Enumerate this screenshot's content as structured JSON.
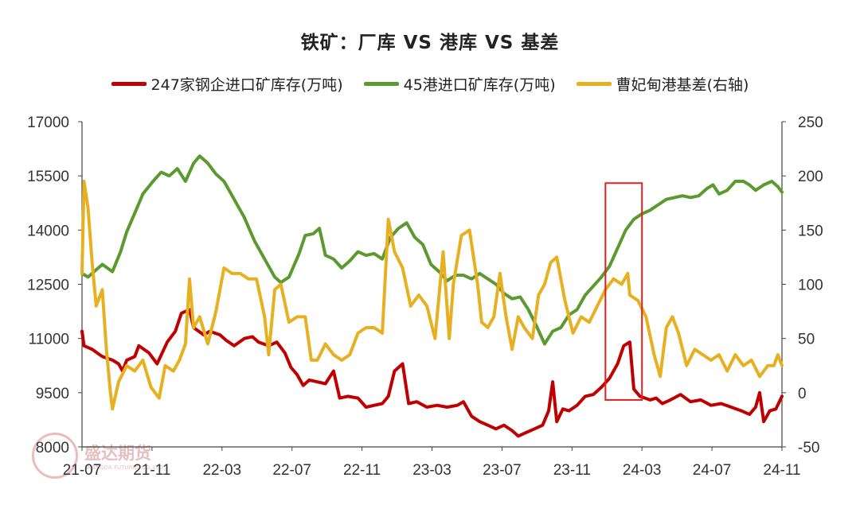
{
  "chart_data": {
    "type": "line",
    "title": "铁矿：厂库 VS 港库 VS 基差",
    "x_tick_labels": [
      "21-07",
      "21-11",
      "22-03",
      "22-07",
      "22-11",
      "23-03",
      "23-07",
      "23-11",
      "24-03",
      "24-07",
      "24-11"
    ],
    "y_left": {
      "ylim": [
        8000,
        17000
      ],
      "ticks": [
        8000,
        9500,
        11000,
        12500,
        14000,
        15500,
        17000
      ]
    },
    "y_right": {
      "ylim": [
        -50,
        250
      ],
      "ticks": [
        -50,
        0,
        50,
        100,
        150,
        200,
        250
      ]
    },
    "x_range": [
      2021.5,
      2024.95
    ],
    "series": [
      {
        "name": "247家钢企进口矿库存(万吨)",
        "axis": "left",
        "color": "#c00000",
        "points": [
          [
            2021.5,
            11200
          ],
          [
            2021.51,
            10800
          ],
          [
            2021.55,
            10700
          ],
          [
            2021.6,
            10500
          ],
          [
            2021.65,
            10400
          ],
          [
            2021.68,
            10300
          ],
          [
            2021.7,
            10100
          ],
          [
            2021.72,
            10400
          ],
          [
            2021.76,
            10500
          ],
          [
            2021.78,
            10800
          ],
          [
            2021.83,
            10600
          ],
          [
            2021.87,
            10300
          ],
          [
            2021.92,
            10900
          ],
          [
            2021.96,
            11200
          ],
          [
            2021.99,
            11700
          ],
          [
            2022.03,
            11800
          ],
          [
            2022.05,
            11300
          ],
          [
            2022.1,
            11100
          ],
          [
            2022.13,
            11200
          ],
          [
            2022.18,
            11100
          ],
          [
            2022.21,
            10950
          ],
          [
            2022.25,
            10800
          ],
          [
            2022.3,
            11000
          ],
          [
            2022.34,
            11050
          ],
          [
            2022.37,
            10900
          ],
          [
            2022.42,
            10800
          ],
          [
            2022.46,
            10900
          ],
          [
            2022.5,
            10600
          ],
          [
            2022.53,
            10200
          ],
          [
            2022.56,
            10000
          ],
          [
            2022.59,
            9700
          ],
          [
            2022.62,
            9850
          ],
          [
            2022.66,
            9800
          ],
          [
            2022.7,
            9750
          ],
          [
            2022.74,
            10100
          ],
          [
            2022.77,
            9350
          ],
          [
            2022.81,
            9400
          ],
          [
            2022.86,
            9350
          ],
          [
            2022.9,
            9100
          ],
          [
            2022.94,
            9150
          ],
          [
            2022.98,
            9200
          ],
          [
            2023.01,
            9400
          ],
          [
            2023.04,
            10100
          ],
          [
            2023.08,
            10300
          ],
          [
            2023.11,
            9200
          ],
          [
            2023.15,
            9250
          ],
          [
            2023.2,
            9100
          ],
          [
            2023.25,
            9150
          ],
          [
            2023.3,
            9100
          ],
          [
            2023.35,
            9150
          ],
          [
            2023.38,
            9250
          ],
          [
            2023.42,
            8850
          ],
          [
            2023.46,
            8700
          ],
          [
            2023.5,
            8600
          ],
          [
            2023.54,
            8500
          ],
          [
            2023.58,
            8600
          ],
          [
            2023.62,
            8450
          ],
          [
            2023.65,
            8300
          ],
          [
            2023.69,
            8400
          ],
          [
            2023.73,
            8500
          ],
          [
            2023.77,
            8600
          ],
          [
            2023.8,
            9000
          ],
          [
            2023.82,
            9800
          ],
          [
            2023.84,
            8700
          ],
          [
            2023.87,
            9050
          ],
          [
            2023.9,
            9000
          ],
          [
            2023.94,
            9150
          ],
          [
            2023.98,
            9400
          ],
          [
            2024.02,
            9450
          ],
          [
            2024.06,
            9650
          ],
          [
            2024.1,
            9900
          ],
          [
            2024.14,
            10300
          ],
          [
            2024.17,
            10800
          ],
          [
            2024.2,
            10900
          ],
          [
            2024.22,
            9600
          ],
          [
            2024.25,
            9400
          ],
          [
            2024.3,
            9300
          ],
          [
            2024.33,
            9350
          ],
          [
            2024.36,
            9200
          ],
          [
            2024.4,
            9300
          ],
          [
            2024.45,
            9450
          ],
          [
            2024.5,
            9250
          ],
          [
            2024.55,
            9300
          ],
          [
            2024.6,
            9150
          ],
          [
            2024.65,
            9200
          ],
          [
            2024.7,
            9100
          ],
          [
            2024.75,
            9000
          ],
          [
            2024.79,
            8900
          ],
          [
            2024.82,
            9100
          ],
          [
            2024.84,
            9500
          ],
          [
            2024.86,
            8700
          ],
          [
            2024.89,
            9000
          ],
          [
            2024.92,
            9050
          ],
          [
            2024.95,
            9400
          ]
        ]
      },
      {
        "name": "45港进口矿库存(万吨)",
        "axis": "left",
        "color": "#5b9a2f",
        "points": [
          [
            2021.5,
            12800
          ],
          [
            2021.53,
            12700
          ],
          [
            2021.57,
            12900
          ],
          [
            2021.6,
            13050
          ],
          [
            2021.65,
            12850
          ],
          [
            2021.69,
            13400
          ],
          [
            2021.72,
            13950
          ],
          [
            2021.77,
            14600
          ],
          [
            2021.8,
            15000
          ],
          [
            2021.85,
            15350
          ],
          [
            2021.89,
            15600
          ],
          [
            2021.93,
            15500
          ],
          [
            2021.97,
            15700
          ],
          [
            2022.01,
            15350
          ],
          [
            2022.05,
            15850
          ],
          [
            2022.08,
            16050
          ],
          [
            2022.12,
            15850
          ],
          [
            2022.16,
            15550
          ],
          [
            2022.2,
            15350
          ],
          [
            2022.25,
            14850
          ],
          [
            2022.3,
            14350
          ],
          [
            2022.35,
            13700
          ],
          [
            2022.4,
            13200
          ],
          [
            2022.45,
            12700
          ],
          [
            2022.48,
            12550
          ],
          [
            2022.52,
            12700
          ],
          [
            2022.57,
            13350
          ],
          [
            2022.6,
            13850
          ],
          [
            2022.64,
            13900
          ],
          [
            2022.67,
            14050
          ],
          [
            2022.7,
            13300
          ],
          [
            2022.74,
            13200
          ],
          [
            2022.78,
            12950
          ],
          [
            2022.82,
            13150
          ],
          [
            2022.86,
            13400
          ],
          [
            2022.9,
            13300
          ],
          [
            2022.94,
            13350
          ],
          [
            2022.98,
            13200
          ],
          [
            2023.02,
            13800
          ],
          [
            2023.06,
            14050
          ],
          [
            2023.1,
            14200
          ],
          [
            2023.14,
            13800
          ],
          [
            2023.18,
            13600
          ],
          [
            2023.22,
            13050
          ],
          [
            2023.26,
            12850
          ],
          [
            2023.3,
            12600
          ],
          [
            2023.34,
            12750
          ],
          [
            2023.38,
            12750
          ],
          [
            2023.42,
            12650
          ],
          [
            2023.46,
            12800
          ],
          [
            2023.5,
            12650
          ],
          [
            2023.54,
            12500
          ],
          [
            2023.58,
            12250
          ],
          [
            2023.62,
            12100
          ],
          [
            2023.66,
            12150
          ],
          [
            2023.7,
            11800
          ],
          [
            2023.74,
            11350
          ],
          [
            2023.78,
            10850
          ],
          [
            2023.82,
            11200
          ],
          [
            2023.86,
            11300
          ],
          [
            2023.9,
            11650
          ],
          [
            2023.94,
            11800
          ],
          [
            2023.98,
            12200
          ],
          [
            2024.02,
            12450
          ],
          [
            2024.06,
            12700
          ],
          [
            2024.1,
            13000
          ],
          [
            2024.14,
            13500
          ],
          [
            2024.18,
            14000
          ],
          [
            2024.22,
            14300
          ],
          [
            2024.26,
            14450
          ],
          [
            2024.3,
            14550
          ],
          [
            2024.34,
            14700
          ],
          [
            2024.38,
            14850
          ],
          [
            2024.42,
            14900
          ],
          [
            2024.46,
            14950
          ],
          [
            2024.5,
            14900
          ],
          [
            2024.54,
            14950
          ],
          [
            2024.58,
            15150
          ],
          [
            2024.61,
            15250
          ],
          [
            2024.64,
            15000
          ],
          [
            2024.68,
            15100
          ],
          [
            2024.72,
            15350
          ],
          [
            2024.76,
            15350
          ],
          [
            2024.79,
            15250
          ],
          [
            2024.82,
            15100
          ],
          [
            2024.86,
            15250
          ],
          [
            2024.9,
            15350
          ],
          [
            2024.93,
            15200
          ],
          [
            2024.95,
            15050
          ]
        ]
      },
      {
        "name": "曹妃甸港基差(右轴)",
        "axis": "right",
        "color": "#e6b020",
        "points": [
          [
            2021.5,
            110
          ],
          [
            2021.51,
            195
          ],
          [
            2021.53,
            170
          ],
          [
            2021.55,
            120
          ],
          [
            2021.57,
            80
          ],
          [
            2021.6,
            95
          ],
          [
            2021.62,
            40
          ],
          [
            2021.64,
            0
          ],
          [
            2021.65,
            -15
          ],
          [
            2021.68,
            10
          ],
          [
            2021.72,
            25
          ],
          [
            2021.76,
            20
          ],
          [
            2021.8,
            30
          ],
          [
            2021.84,
            5
          ],
          [
            2021.88,
            -5
          ],
          [
            2021.91,
            25
          ],
          [
            2021.95,
            20
          ],
          [
            2021.98,
            30
          ],
          [
            2022.01,
            45
          ],
          [
            2022.03,
            105
          ],
          [
            2022.05,
            60
          ],
          [
            2022.08,
            70
          ],
          [
            2022.12,
            45
          ],
          [
            2022.16,
            75
          ],
          [
            2022.2,
            115
          ],
          [
            2022.24,
            110
          ],
          [
            2022.28,
            110
          ],
          [
            2022.32,
            105
          ],
          [
            2022.36,
            105
          ],
          [
            2022.4,
            70
          ],
          [
            2022.42,
            35
          ],
          [
            2022.45,
            95
          ],
          [
            2022.48,
            100
          ],
          [
            2022.52,
            65
          ],
          [
            2022.56,
            70
          ],
          [
            2022.6,
            70
          ],
          [
            2022.63,
            30
          ],
          [
            2022.66,
            30
          ],
          [
            2022.7,
            45
          ],
          [
            2022.74,
            35
          ],
          [
            2022.78,
            30
          ],
          [
            2022.82,
            35
          ],
          [
            2022.86,
            55
          ],
          [
            2022.9,
            60
          ],
          [
            2022.94,
            60
          ],
          [
            2022.98,
            55
          ],
          [
            2023.01,
            160
          ],
          [
            2023.04,
            130
          ],
          [
            2023.08,
            115
          ],
          [
            2023.12,
            80
          ],
          [
            2023.16,
            90
          ],
          [
            2023.2,
            80
          ],
          [
            2023.24,
            50
          ],
          [
            2023.28,
            130
          ],
          [
            2023.31,
            50
          ],
          [
            2023.33,
            100
          ],
          [
            2023.37,
            145
          ],
          [
            2023.41,
            150
          ],
          [
            2023.45,
            100
          ],
          [
            2023.47,
            65
          ],
          [
            2023.5,
            60
          ],
          [
            2023.53,
            70
          ],
          [
            2023.56,
            110
          ],
          [
            2023.59,
            70
          ],
          [
            2023.62,
            40
          ],
          [
            2023.65,
            70
          ],
          [
            2023.68,
            60
          ],
          [
            2023.72,
            50
          ],
          [
            2023.75,
            90
          ],
          [
            2023.78,
            100
          ],
          [
            2023.81,
            120
          ],
          [
            2023.84,
            125
          ],
          [
            2023.88,
            85
          ],
          [
            2023.92,
            55
          ],
          [
            2023.96,
            70
          ],
          [
            2024.0,
            65
          ],
          [
            2024.04,
            80
          ],
          [
            2024.08,
            95
          ],
          [
            2024.12,
            105
          ],
          [
            2024.16,
            100
          ],
          [
            2024.19,
            110
          ],
          [
            2024.2,
            90
          ],
          [
            2024.24,
            85
          ],
          [
            2024.28,
            70
          ],
          [
            2024.32,
            35
          ],
          [
            2024.35,
            15
          ],
          [
            2024.38,
            60
          ],
          [
            2024.41,
            70
          ],
          [
            2024.44,
            55
          ],
          [
            2024.48,
            25
          ],
          [
            2024.52,
            40
          ],
          [
            2024.56,
            35
          ],
          [
            2024.6,
            30
          ],
          [
            2024.64,
            35
          ],
          [
            2024.68,
            20
          ],
          [
            2024.72,
            35
          ],
          [
            2024.76,
            25
          ],
          [
            2024.8,
            30
          ],
          [
            2024.84,
            15
          ],
          [
            2024.88,
            25
          ],
          [
            2024.91,
            25
          ],
          [
            2024.93,
            35
          ],
          [
            2024.95,
            25
          ]
        ]
      }
    ],
    "highlight_box": {
      "x_range": [
        2024.08,
        2024.26
      ],
      "y_range": [
        9300,
        15300
      ],
      "color": "#e02020"
    },
    "grid": false,
    "legend_position": "top"
  },
  "watermark": {
    "text": "盛达期货",
    "sub": "SHENGDA FUTURES CO.,LTD"
  }
}
